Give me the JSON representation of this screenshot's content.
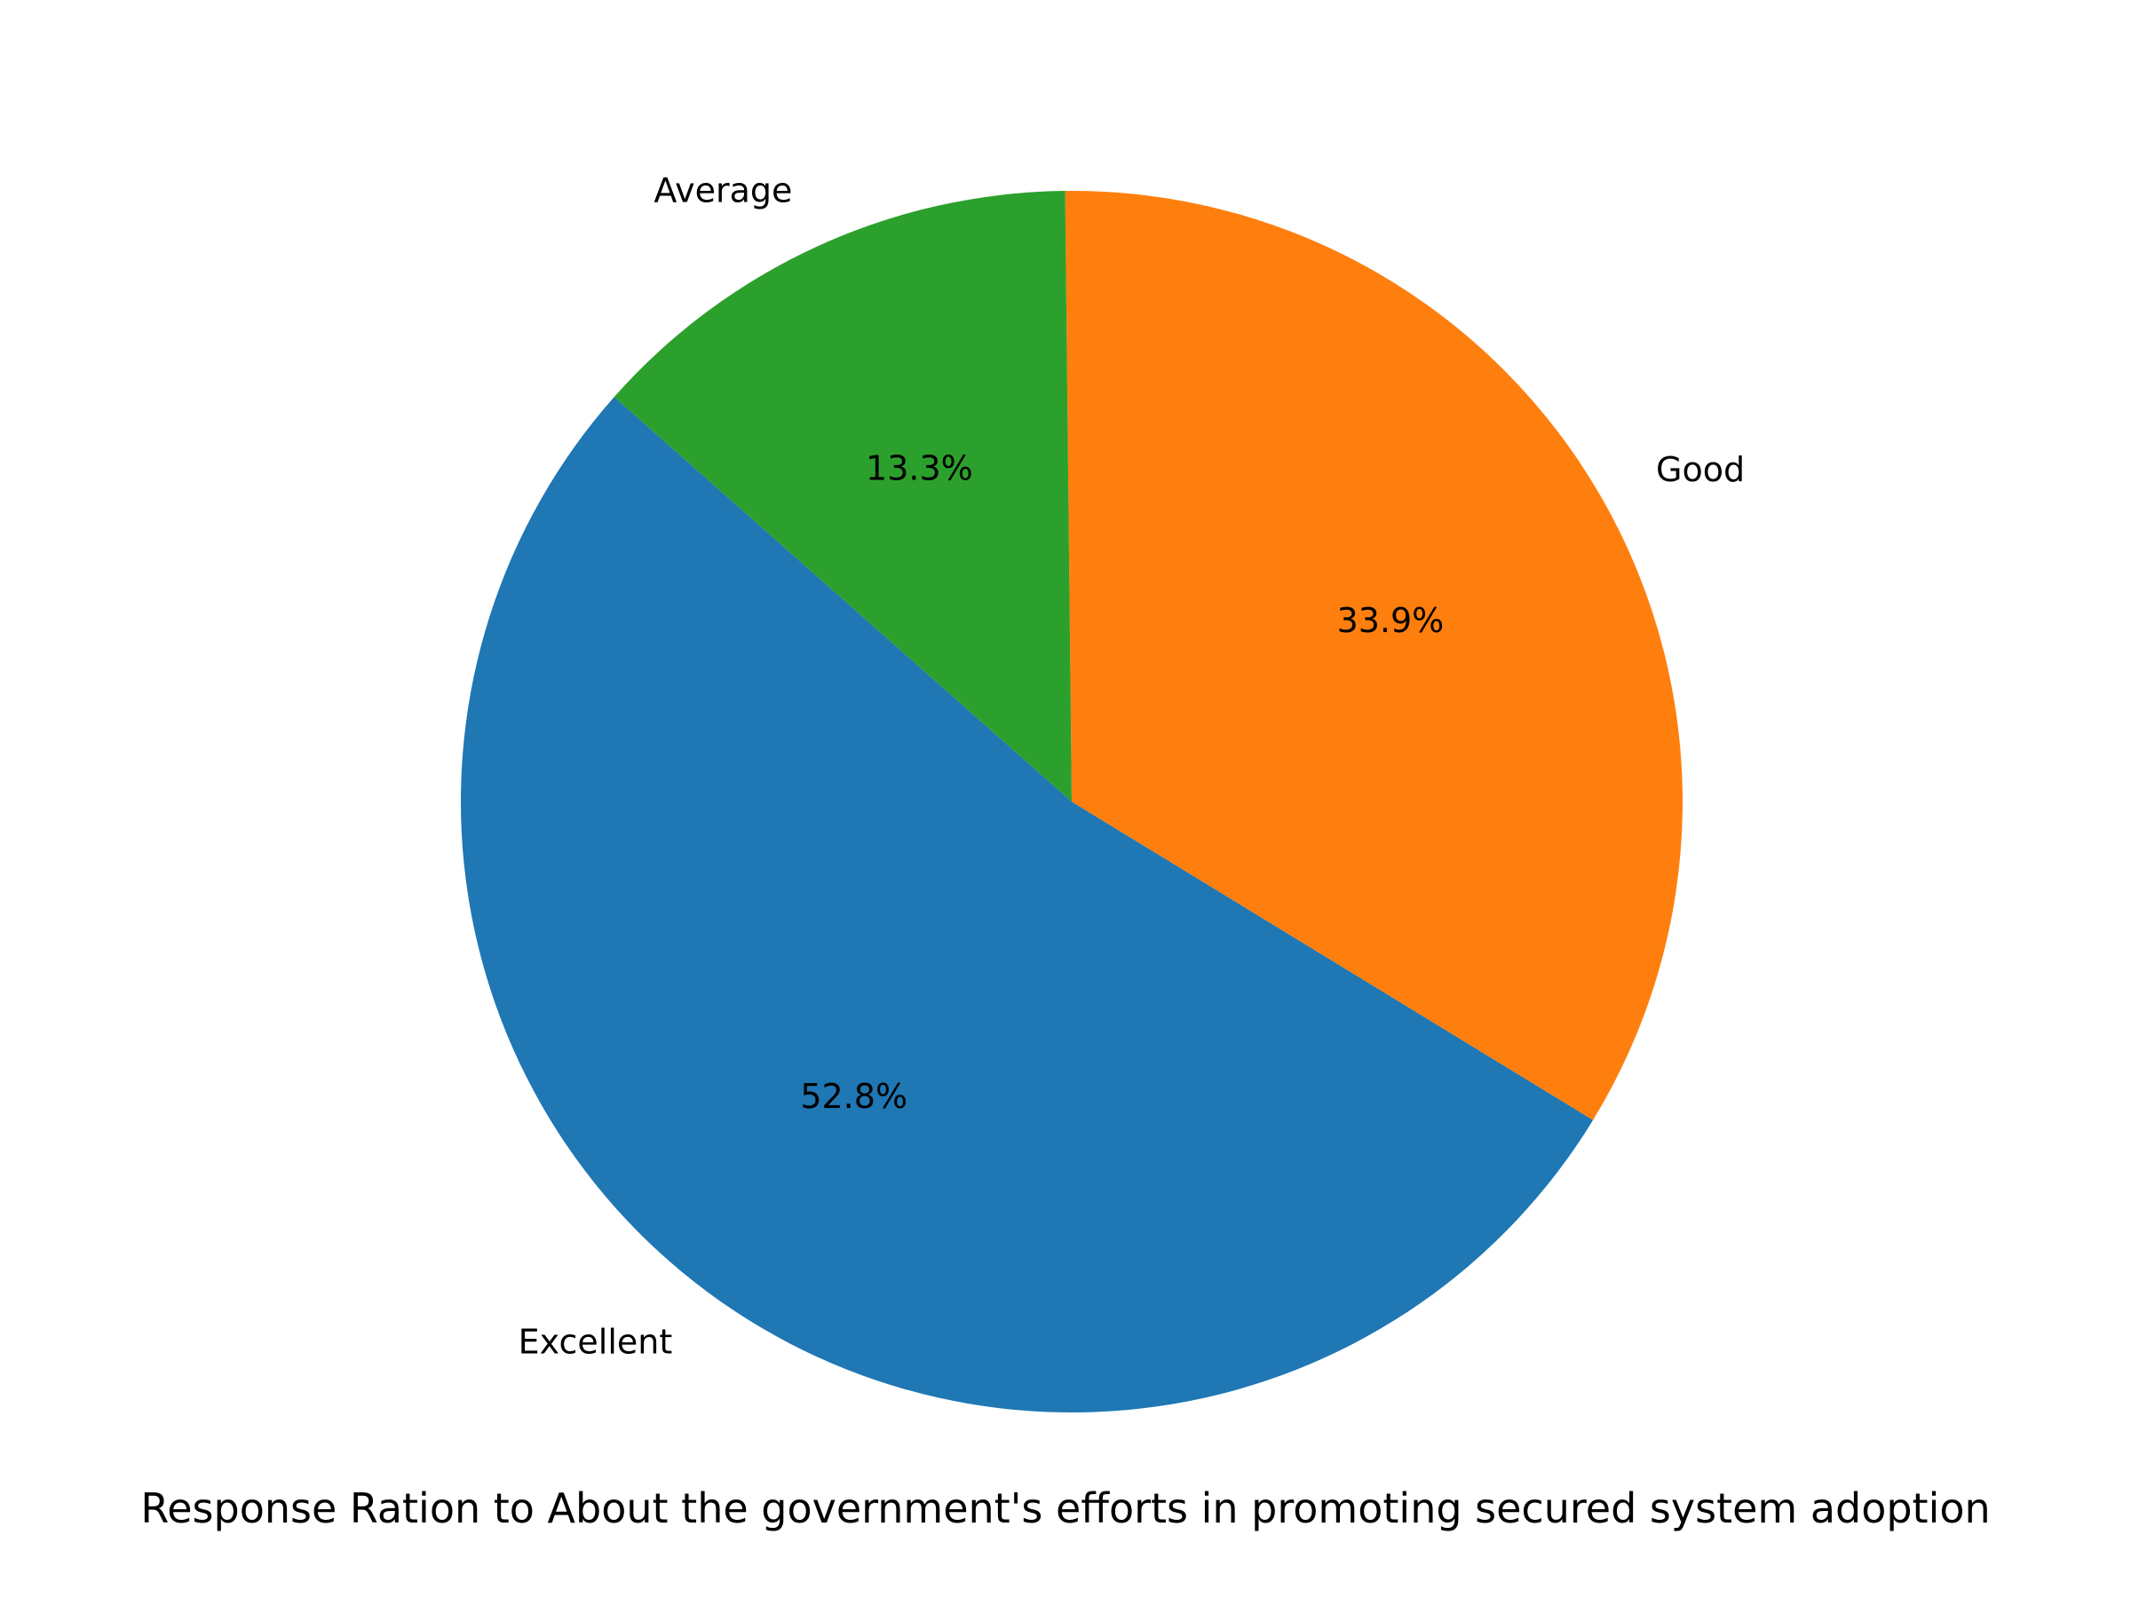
{
  "chart_data": {
    "type": "pie",
    "title": "Response Ration to About the government's efforts in promoting secured system adoption",
    "categories": [
      "Excellent",
      "Good",
      "Average"
    ],
    "values": [
      52.8,
      33.9,
      13.3
    ],
    "value_labels": [
      "52.8%",
      "33.9%",
      "13.3%"
    ],
    "colors": [
      "#1f77b4",
      "#ff7f0e",
      "#2ca02c"
    ],
    "start_angle_deg": 138.5,
    "direction": "counterclockwise",
    "legend": "none"
  }
}
